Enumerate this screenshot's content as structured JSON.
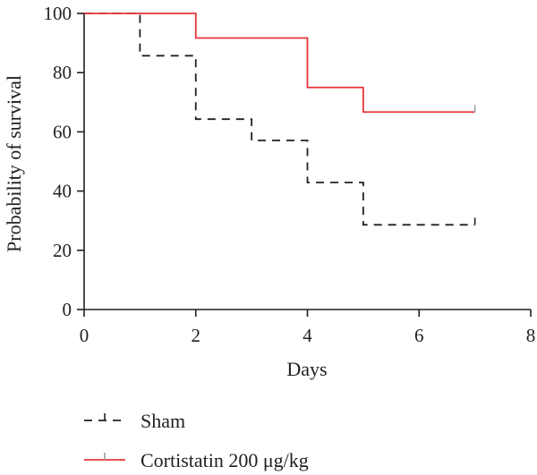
{
  "chart_data": {
    "type": "line",
    "step": true,
    "xlabel": "Days",
    "ylabel": "Probability of survival",
    "xlim": [
      0,
      8
    ],
    "ylim": [
      0,
      100
    ],
    "xticks": [
      0,
      2,
      4,
      6,
      8
    ],
    "yticks": [
      0,
      20,
      40,
      60,
      80,
      100
    ],
    "xtick_labels": [
      "0",
      "2",
      "4",
      "6",
      "8"
    ],
    "ytick_labels": [
      "0",
      "20",
      "40",
      "60",
      "80",
      "100"
    ],
    "grid": false,
    "legend_position": "bottom-left",
    "series": [
      {
        "name": "Sham",
        "color": "#231f20",
        "line_style": "dashed",
        "x": [
          0,
          1,
          2,
          3,
          4,
          5,
          7
        ],
        "y": [
          100,
          85.7,
          64.3,
          57.1,
          42.9,
          28.6,
          28.6
        ],
        "censored_x": [
          7
        ]
      },
      {
        "name": "Cortistatin 200 μg/kg",
        "color": "#e8343a",
        "line_style": "solid",
        "x": [
          0,
          2,
          4,
          5,
          7
        ],
        "y": [
          100,
          91.7,
          75,
          66.7,
          66.7
        ],
        "censored_x": [
          7
        ]
      }
    ]
  }
}
